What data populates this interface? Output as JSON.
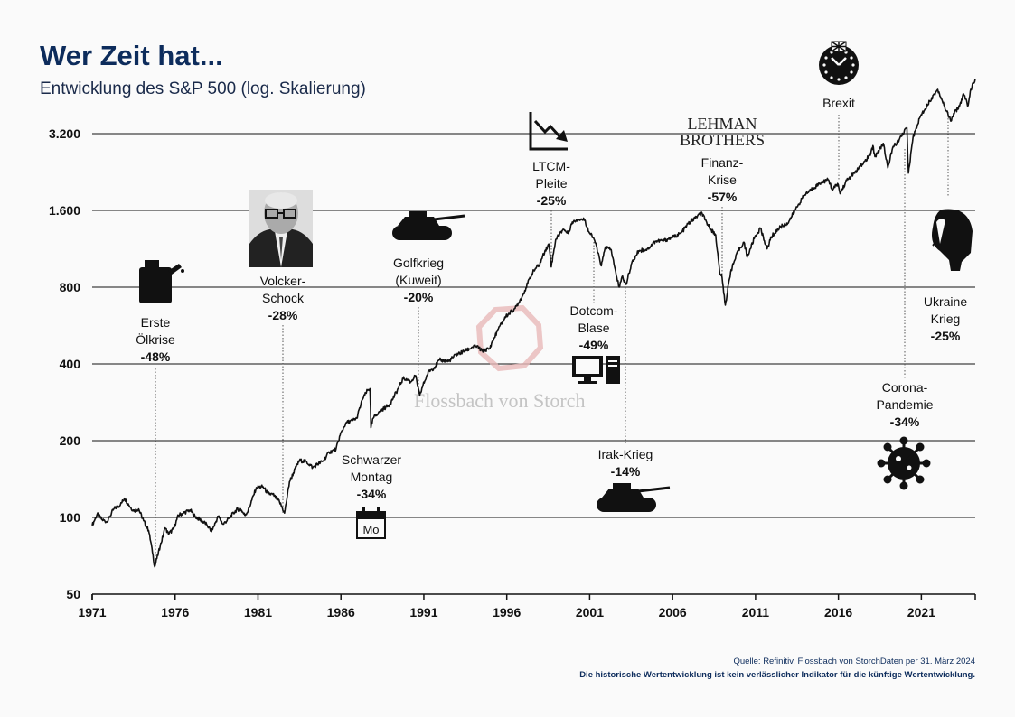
{
  "header": {
    "title": "Wer Zeit hat...",
    "subtitle": "Entwicklung des S&P 500 (log. Skalierung)"
  },
  "footer": {
    "source": "Quelle: Refinitiv, Flossbach von StorchDaten per 31. März 2024",
    "disclaimer": "Die historische Wertentwicklung ist kein verlässlicher Indikator für die künftige Wertentwicklung."
  },
  "watermark": "Flossbach von Storch",
  "chart_data": {
    "type": "line",
    "title": "Wer Zeit hat...",
    "subtitle": "Entwicklung des S&P 500 (log. Skalierung)",
    "y_scale": "log",
    "ylim": [
      50,
      4500
    ],
    "xlim": [
      1971,
      2024.25
    ],
    "y_ticks": [
      {
        "value": 50,
        "label": "50"
      },
      {
        "value": 100,
        "label": "100"
      },
      {
        "value": 200,
        "label": "200"
      },
      {
        "value": 400,
        "label": "400"
      },
      {
        "value": 800,
        "label": "800"
      },
      {
        "value": 1600,
        "label": "1.600"
      },
      {
        "value": 3200,
        "label": "3.200"
      }
    ],
    "x_ticks": [
      {
        "value": 1971,
        "label": "1971"
      },
      {
        "value": 1976,
        "label": "1976"
      },
      {
        "value": 1981,
        "label": "1981"
      },
      {
        "value": 1986,
        "label": "1986"
      },
      {
        "value": 1991,
        "label": "1991"
      },
      {
        "value": 1996,
        "label": "1996"
      },
      {
        "value": 2001,
        "label": "2001"
      },
      {
        "value": 2006,
        "label": "2006"
      },
      {
        "value": 2011,
        "label": "2011"
      },
      {
        "value": 2016,
        "label": "2016"
      },
      {
        "value": 2021,
        "label": "2021"
      }
    ],
    "grid": "horizontal",
    "series": [
      {
        "points": [
          [
            1971.0,
            93
          ],
          [
            1971.3,
            103
          ],
          [
            1971.6,
            98
          ],
          [
            1971.9,
            96
          ],
          [
            1972.3,
            108
          ],
          [
            1972.7,
            112
          ],
          [
            1972.95,
            119
          ],
          [
            1973.2,
            112
          ],
          [
            1973.5,
            106
          ],
          [
            1973.8,
            108
          ],
          [
            1974.1,
            97
          ],
          [
            1974.4,
            89
          ],
          [
            1974.6,
            76
          ],
          [
            1974.77,
            64
          ],
          [
            1974.9,
            69
          ],
          [
            1975.1,
            77
          ],
          [
            1975.4,
            91
          ],
          [
            1975.6,
            86
          ],
          [
            1975.9,
            90
          ],
          [
            1976.2,
            102
          ],
          [
            1976.5,
            104
          ],
          [
            1976.9,
            107
          ],
          [
            1977.2,
            101
          ],
          [
            1977.6,
            97
          ],
          [
            1977.9,
            94
          ],
          [
            1978.2,
            88
          ],
          [
            1978.6,
            101
          ],
          [
            1978.9,
            94
          ],
          [
            1979.3,
            100
          ],
          [
            1979.7,
            107
          ],
          [
            1979.95,
            108
          ],
          [
            1980.2,
            102
          ],
          [
            1980.4,
            106
          ],
          [
            1980.9,
            131
          ],
          [
            1981.3,
            132
          ],
          [
            1981.6,
            124
          ],
          [
            1981.9,
            123
          ],
          [
            1982.3,
            115
          ],
          [
            1982.6,
            104
          ],
          [
            1982.9,
            138
          ],
          [
            1983.3,
            158
          ],
          [
            1983.5,
            167
          ],
          [
            1983.9,
            166
          ],
          [
            1984.3,
            157
          ],
          [
            1984.6,
            162
          ],
          [
            1984.9,
            166
          ],
          [
            1985.3,
            180
          ],
          [
            1985.7,
            185
          ],
          [
            1985.95,
            210
          ],
          [
            1986.3,
            235
          ],
          [
            1986.7,
            240
          ],
          [
            1986.95,
            245
          ],
          [
            1987.3,
            290
          ],
          [
            1987.6,
            315
          ],
          [
            1987.75,
            320
          ],
          [
            1987.81,
            225
          ],
          [
            1987.95,
            245
          ],
          [
            1988.3,
            260
          ],
          [
            1988.7,
            270
          ],
          [
            1988.95,
            278
          ],
          [
            1989.4,
            315
          ],
          [
            1989.75,
            350
          ],
          [
            1989.95,
            350
          ],
          [
            1990.2,
            340
          ],
          [
            1990.5,
            360
          ],
          [
            1990.75,
            300
          ],
          [
            1990.95,
            330
          ],
          [
            1991.3,
            375
          ],
          [
            1991.6,
            385
          ],
          [
            1991.95,
            415
          ],
          [
            1992.5,
            410
          ],
          [
            1992.95,
            435
          ],
          [
            1993.5,
            450
          ],
          [
            1993.95,
            466
          ],
          [
            1994.2,
            470
          ],
          [
            1994.5,
            450
          ],
          [
            1994.95,
            459
          ],
          [
            1995.5,
            550
          ],
          [
            1995.95,
            615
          ],
          [
            1996.5,
            660
          ],
          [
            1996.95,
            740
          ],
          [
            1997.5,
            900
          ],
          [
            1997.8,
            960
          ],
          [
            1997.95,
            970
          ],
          [
            1998.3,
            1110
          ],
          [
            1998.55,
            1180
          ],
          [
            1998.68,
            960
          ],
          [
            1998.95,
            1230
          ],
          [
            1999.4,
            1350
          ],
          [
            1999.7,
            1300
          ],
          [
            1999.95,
            1440
          ],
          [
            2000.3,
            1480
          ],
          [
            2000.7,
            1470
          ],
          [
            2000.95,
            1320
          ],
          [
            2001.3,
            1220
          ],
          [
            2001.7,
            970
          ],
          [
            2001.95,
            1150
          ],
          [
            2002.3,
            1120
          ],
          [
            2002.6,
            890
          ],
          [
            2002.78,
            800
          ],
          [
            2002.95,
            880
          ],
          [
            2003.2,
            820
          ],
          [
            2003.5,
            980
          ],
          [
            2003.95,
            1110
          ],
          [
            2004.5,
            1130
          ],
          [
            2004.95,
            1210
          ],
          [
            2005.5,
            1220
          ],
          [
            2005.95,
            1250
          ],
          [
            2006.5,
            1300
          ],
          [
            2006.95,
            1420
          ],
          [
            2007.5,
            1520
          ],
          [
            2007.78,
            1560
          ],
          [
            2007.95,
            1470
          ],
          [
            2008.3,
            1350
          ],
          [
            2008.6,
            1280
          ],
          [
            2008.85,
            900
          ],
          [
            2008.95,
            900
          ],
          [
            2009.18,
            680
          ],
          [
            2009.5,
            920
          ],
          [
            2009.95,
            1110
          ],
          [
            2010.3,
            1200
          ],
          [
            2010.5,
            1050
          ],
          [
            2010.95,
            1255
          ],
          [
            2011.3,
            1360
          ],
          [
            2011.7,
            1130
          ],
          [
            2011.95,
            1260
          ],
          [
            2012.5,
            1380
          ],
          [
            2012.95,
            1425
          ],
          [
            2013.5,
            1650
          ],
          [
            2013.95,
            1840
          ],
          [
            2014.5,
            1960
          ],
          [
            2014.95,
            2060
          ],
          [
            2015.4,
            2110
          ],
          [
            2015.65,
            1920
          ],
          [
            2015.95,
            2040
          ],
          [
            2016.1,
            1860
          ],
          [
            2016.5,
            2100
          ],
          [
            2016.95,
            2240
          ],
          [
            2017.5,
            2440
          ],
          [
            2017.95,
            2670
          ],
          [
            2018.08,
            2870
          ],
          [
            2018.2,
            2600
          ],
          [
            2018.7,
            2930
          ],
          [
            2018.98,
            2350
          ],
          [
            2019.3,
            2850
          ],
          [
            2019.6,
            2980
          ],
          [
            2019.95,
            3230
          ],
          [
            2020.13,
            3380
          ],
          [
            2020.22,
            2240
          ],
          [
            2020.5,
            3100
          ],
          [
            2020.95,
            3750
          ],
          [
            2021.5,
            4300
          ],
          [
            2021.99,
            4770
          ],
          [
            2022.4,
            4100
          ],
          [
            2022.78,
            3580
          ],
          [
            2022.95,
            3840
          ],
          [
            2023.3,
            4100
          ],
          [
            2023.55,
            4580
          ],
          [
            2023.82,
            4120
          ],
          [
            2023.98,
            4770
          ],
          [
            2024.25,
            5250
          ]
        ]
      }
    ],
    "events": [
      {
        "label": "Erste\nÖlkrise",
        "change": "-48%",
        "year": 1974.0,
        "icon": "fuel-canister-icon"
      },
      {
        "label": "Volcker-\nSchock",
        "change": "-28%",
        "year": 1982.6,
        "icon": "volcker-portrait-icon"
      },
      {
        "label": "Schwarzer\nMontag",
        "change": "-34%",
        "year": 1987.8,
        "icon": "calendar-monday-icon"
      },
      {
        "label": "Golfkrieg\n(Kuweit)",
        "change": "-20%",
        "year": 1990.9,
        "icon": "tank-icon"
      },
      {
        "label": "LTCM-\nPleite",
        "change": "-25%",
        "year": 1998.6,
        "icon": "falling-chart-icon"
      },
      {
        "label": "Dotcom-\nBlase",
        "change": "-49%",
        "year": 2001.3,
        "icon": "computer-icon"
      },
      {
        "label": "Irak-Krieg",
        "change": "-14%",
        "year": 2003.2,
        "icon": "tank-icon"
      },
      {
        "label": "Finanz-\nKrise",
        "change": "-57%",
        "year": 2008.9,
        "icon": "lehman-brothers-logo"
      },
      {
        "label": "Brexit",
        "change": "",
        "year": 2016.2,
        "icon": "brexit-clock-icon"
      },
      {
        "label": "Corona-\nPandemie",
        "change": "-34%",
        "year": 2020.2,
        "icon": "virus-icon"
      },
      {
        "label": "Ukraine\nKrieg",
        "change": "-25%",
        "year": 2022.8,
        "icon": "soldier-silhouette-icon"
      }
    ],
    "logo_text": {
      "lehman": [
        "LEHMAN",
        "BROTHERS"
      ],
      "calendar": "Mo"
    }
  }
}
